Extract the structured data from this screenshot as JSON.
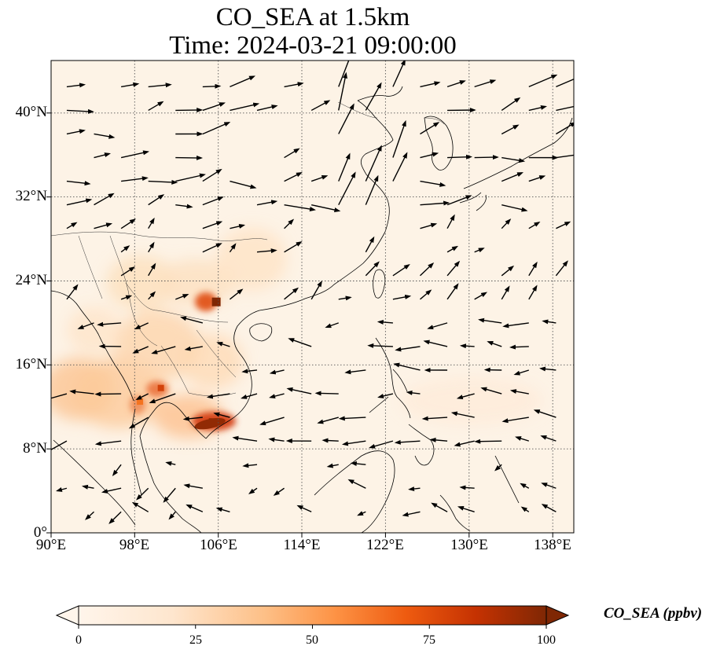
{
  "title": {
    "line1": "CO_SEA at 1.5km",
    "line2": "Time: 2024-03-21 09:00:00"
  },
  "map": {
    "lon_range": [
      90,
      140
    ],
    "lat_range": [
      0,
      45
    ],
    "graticule": "dotted",
    "background_color": "#fdf3e6",
    "coast_color": "#000000"
  },
  "axes": {
    "x_ticks": [
      "90°E",
      "98°E",
      "106°E",
      "114°E",
      "122°E",
      "130°E",
      "138°E"
    ],
    "y_ticks": [
      "0°",
      "8°N",
      "16°N",
      "24°N",
      "32°N",
      "40°N"
    ]
  },
  "colorbar": {
    "label": "CO_SEA (ppbv)",
    "ticks": [
      "0",
      "25",
      "50",
      "75",
      "100"
    ],
    "range": [
      0,
      100
    ],
    "extend": "both",
    "colormap": [
      "#fff5eb",
      "#fdd9b4",
      "#fdaa6a",
      "#f4731f",
      "#c83304",
      "#7f2704"
    ]
  },
  "chart_data": {
    "type": "heatmap",
    "variable": "CO_SEA",
    "units": "ppbv",
    "level": "1.5km",
    "time": "2024-03-21 09:00:00",
    "hotspots": [
      {
        "lon": 105.8,
        "lat": 22.0,
        "value": 100
      },
      {
        "lon": 105.5,
        "lat": 10.5,
        "value": 100
      },
      {
        "lon": 100.5,
        "lat": 13.8,
        "value": 75
      },
      {
        "lon": 98.5,
        "lat": 12.5,
        "value": 60
      }
    ],
    "elevated_regions": [
      {
        "lon": 96,
        "lat": 14,
        "value": 30
      },
      {
        "lon": 101,
        "lat": 18,
        "value": 25
      },
      {
        "lon": 104,
        "lat": 12,
        "value": 40
      },
      {
        "lon": 108,
        "lat": 25,
        "value": 15
      },
      {
        "lon": 98,
        "lat": 24,
        "value": 15
      }
    ],
    "wind_vectors": "quiver field of wind arrows over the domain"
  }
}
